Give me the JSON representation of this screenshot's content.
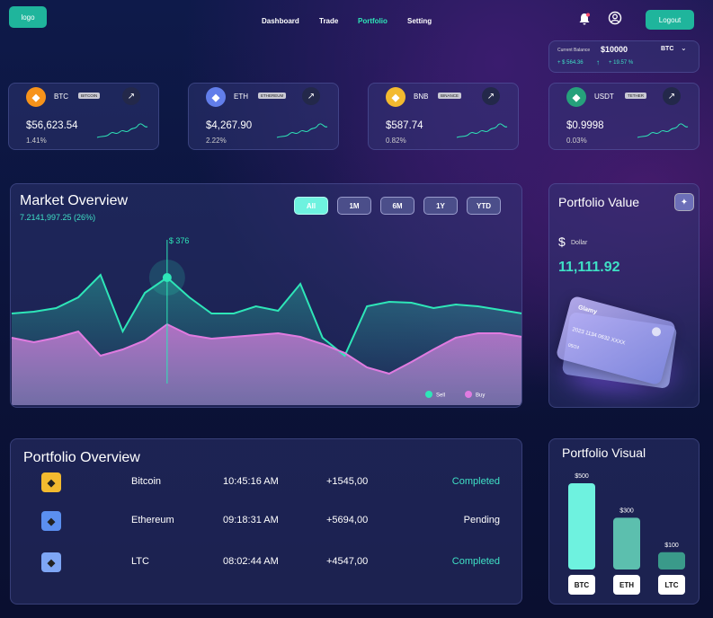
{
  "nav": {
    "logo": "logo",
    "links": [
      "Dashboard",
      "Trade",
      "Portfolio",
      "Setting"
    ],
    "active": 2,
    "logout": "Logout"
  },
  "balance": {
    "label": "Current Balance",
    "amount": "$10000",
    "currency": "BTC",
    "change": "+ $ 564.36",
    "percent": "+ 19.57 %"
  },
  "coins": [
    {
      "symbol": "BTC",
      "name": "BITCOIN",
      "price": "$56,623.54",
      "change": "1.41%",
      "color": "#f7931a"
    },
    {
      "symbol": "ETH",
      "name": "ETHEREUM",
      "price": "$4,267.90",
      "change": "2.22%",
      "color": "#627eea"
    },
    {
      "symbol": "BNB",
      "name": "BINANCE",
      "price": "$587.74",
      "change": "0.82%",
      "color": "#f3ba2f"
    },
    {
      "symbol": "USDT",
      "name": "TETHER",
      "price": "$0.9998",
      "change": "0.03%",
      "color": "#26a17b"
    }
  ],
  "market_buttons": {
    "ranges": [
      "All",
      "1M",
      "6M",
      "1Y",
      "YTD"
    ],
    "active": 0
  },
  "portfolio_value": {
    "title": "Portfolio Value",
    "symbol": "$",
    "unit": "Dollar",
    "amount": "11,111.92",
    "card": {
      "brand": "Glamy",
      "number": "2023 1134 0632 XXXX",
      "expiry": "05/24"
    }
  },
  "portfolio_overview": {
    "title": "Portfolio Overview",
    "rows": [
      [
        "Bitcoin",
        "10:45:16 AM",
        "+1545,00",
        "Completed"
      ],
      [
        "Ethereum",
        "09:18:31 AM",
        "+5694,00",
        "Pending"
      ],
      [
        "LTC",
        "08:02:44 AM",
        "+4547,00",
        "Completed"
      ]
    ],
    "status_colors": [
      "#3fe0c5",
      "#ffffff",
      "#3fe0c5"
    ],
    "icon_colors": [
      "#f3ba2f",
      "#5b8ff0",
      "#7ea6f5"
    ]
  },
  "chart_data": [
    {
      "type": "area-line",
      "title": "Market Overview",
      "subtitle": "7.2141,997.25 (26%)",
      "annotation": "$ 376",
      "annotation_index": 7,
      "categories": [
        null,
        null,
        null,
        null,
        null,
        null,
        null,
        null,
        null,
        null,
        null,
        null,
        null,
        null,
        null,
        null,
        null,
        null,
        null,
        null,
        null,
        null,
        null,
        null
      ],
      "series": [
        {
          "name": "Sell",
          "color": "#2ee6b8",
          "values": [
            102,
            104,
            108,
            120,
            145,
            82,
            125,
            142,
            120,
            102,
            102,
            110,
            105,
            135,
            75,
            55,
            110,
            115,
            114,
            108,
            112,
            110,
            106,
            102
          ]
        },
        {
          "name": "Buy",
          "color": "#e07be0",
          "values": [
            75,
            70,
            75,
            82,
            55,
            62,
            72,
            90,
            78,
            74,
            76,
            78,
            80,
            76,
            68,
            58,
            42,
            35,
            48,
            62,
            75,
            80,
            80,
            76
          ]
        }
      ],
      "ylim": [
        0,
        200
      ],
      "legend": "bottom-right"
    },
    {
      "type": "bar",
      "title": "Portfolio Visual",
      "categories": [
        "BTC",
        "ETH",
        "LTC"
      ],
      "values": [
        500,
        300,
        100
      ],
      "value_labels": [
        "$500",
        "$300",
        "$100"
      ],
      "colors": [
        "#6ef2df",
        "#5cbfae",
        "#3a9a8a"
      ],
      "ylim": [
        0,
        500
      ]
    }
  ]
}
